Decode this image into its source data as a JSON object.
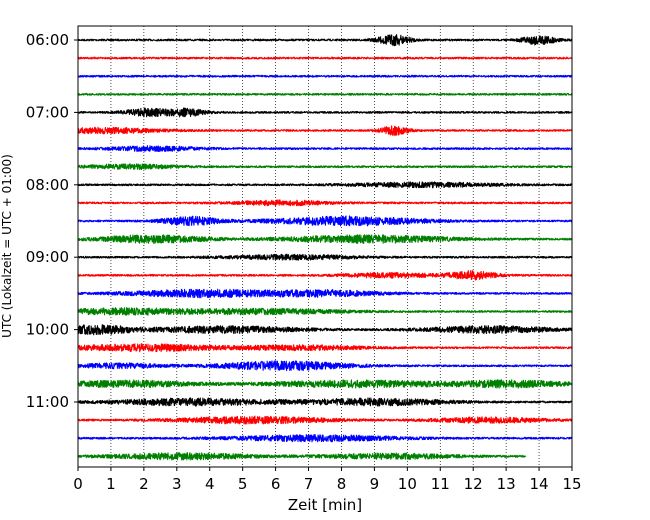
{
  "chart_data": {
    "type": "line",
    "title": "",
    "xlabel": "Zeit  [min]",
    "ylabel": "UTC (Lokalzeit = UTC + 01:00)",
    "xlim": [
      0,
      15
    ],
    "x_ticks": [
      "0",
      "1",
      "2",
      "3",
      "4",
      "5",
      "6",
      "7",
      "8",
      "9",
      "10",
      "11",
      "12",
      "13",
      "14",
      "15"
    ],
    "y_tick_labels": [
      "06:00",
      "07:00",
      "08:00",
      "09:00",
      "10:00",
      "11:00"
    ],
    "grid": "vertical dotted",
    "legend": "none",
    "trace_interval_minutes": 15,
    "trace_colors": [
      "#000000",
      "#ff0000",
      "#0000ff",
      "#008000"
    ],
    "traces": [
      {
        "start": "06:00",
        "color": "#000000",
        "end_minute": 15,
        "bursts": [
          [
            9.6,
            0.35,
            1.4
          ],
          [
            14.0,
            0.35,
            1.3
          ]
        ]
      },
      {
        "start": "06:15",
        "color": "#ff0000",
        "end_minute": 15,
        "bursts": []
      },
      {
        "start": "06:30",
        "color": "#0000ff",
        "end_minute": 15,
        "bursts": []
      },
      {
        "start": "06:45",
        "color": "#008000",
        "end_minute": 15,
        "bursts": []
      },
      {
        "start": "07:00",
        "color": "#000000",
        "end_minute": 15,
        "bursts": [
          [
            2.1,
            0.5,
            1.0
          ],
          [
            3.3,
            0.4,
            1.0
          ]
        ]
      },
      {
        "start": "07:15",
        "color": "#ff0000",
        "end_minute": 15,
        "bursts": [
          [
            9.6,
            0.3,
            1.2
          ],
          [
            0.8,
            1.2,
            0.7
          ]
        ]
      },
      {
        "start": "07:30",
        "color": "#0000ff",
        "end_minute": 15,
        "bursts": [
          [
            2.3,
            1.0,
            0.6
          ]
        ]
      },
      {
        "start": "07:45",
        "color": "#008000",
        "end_minute": 15,
        "bursts": [
          [
            1.6,
            1.0,
            0.6
          ]
        ]
      },
      {
        "start": "08:00",
        "color": "#000000",
        "end_minute": 15,
        "bursts": [
          [
            10.5,
            1.5,
            0.6
          ]
        ]
      },
      {
        "start": "08:15",
        "color": "#ff0000",
        "end_minute": 15,
        "bursts": [
          [
            6.2,
            1.0,
            0.6
          ]
        ]
      },
      {
        "start": "08:30",
        "color": "#0000ff",
        "end_minute": 15,
        "bursts": [
          [
            3.4,
            0.6,
            1.2
          ],
          [
            8.2,
            1.6,
            1.2
          ]
        ]
      },
      {
        "start": "08:45",
        "color": "#008000",
        "end_minute": 15,
        "bursts": [
          [
            2.2,
            1.2,
            1.0
          ],
          [
            8.8,
            1.8,
            1.0
          ]
        ]
      },
      {
        "start": "09:00",
        "color": "#000000",
        "end_minute": 15,
        "bursts": [
          [
            6.5,
            1.4,
            0.6
          ]
        ]
      },
      {
        "start": "09:15",
        "color": "#ff0000",
        "end_minute": 15,
        "bursts": [
          [
            12.0,
            0.5,
            1.1
          ],
          [
            9.5,
            1.0,
            0.6
          ]
        ]
      },
      {
        "start": "09:30",
        "color": "#0000ff",
        "end_minute": 15,
        "bursts": [
          [
            3.8,
            1.6,
            1.0
          ],
          [
            7.5,
            1.2,
            0.8
          ]
        ]
      },
      {
        "start": "09:45",
        "color": "#008000",
        "end_minute": 15,
        "bursts": [
          [
            1.2,
            1.4,
            0.8
          ],
          [
            5.5,
            1.8,
            0.7
          ]
        ]
      },
      {
        "start": "10:00",
        "color": "#000000",
        "end_minute": 15,
        "bursts": [
          [
            0.5,
            0.8,
            1.2
          ],
          [
            4.5,
            1.6,
            0.9
          ],
          [
            12.5,
            1.4,
            0.9
          ]
        ]
      },
      {
        "start": "10:15",
        "color": "#ff0000",
        "end_minute": 15,
        "bursts": [
          [
            2.0,
            1.6,
            0.9
          ],
          [
            6.8,
            1.4,
            0.6
          ]
        ]
      },
      {
        "start": "10:30",
        "color": "#0000ff",
        "end_minute": 15,
        "bursts": [
          [
            6.3,
            1.4,
            1.2
          ],
          [
            1.2,
            1.0,
            0.6
          ]
        ]
      },
      {
        "start": "10:45",
        "color": "#008000",
        "end_minute": 15,
        "bursts": [
          [
            1.5,
            1.4,
            0.9
          ],
          [
            8.5,
            2.0,
            0.9
          ],
          [
            13.2,
            1.2,
            0.9
          ]
        ]
      },
      {
        "start": "11:00",
        "color": "#000000",
        "end_minute": 15,
        "bursts": [
          [
            3.5,
            1.8,
            0.9
          ],
          [
            9.0,
            1.6,
            0.9
          ]
        ]
      },
      {
        "start": "11:15",
        "color": "#ff0000",
        "end_minute": 15,
        "bursts": [
          [
            5.3,
            1.6,
            0.9
          ],
          [
            12.5,
            1.2,
            0.7
          ]
        ]
      },
      {
        "start": "11:30",
        "color": "#0000ff",
        "end_minute": 15,
        "bursts": [
          [
            7.2,
            1.8,
            0.8
          ]
        ]
      },
      {
        "start": "11:45",
        "color": "#008000",
        "end_minute": 13.6,
        "bursts": [
          [
            3.2,
            1.6,
            0.8
          ],
          [
            9.5,
            1.4,
            0.7
          ]
        ]
      }
    ]
  }
}
